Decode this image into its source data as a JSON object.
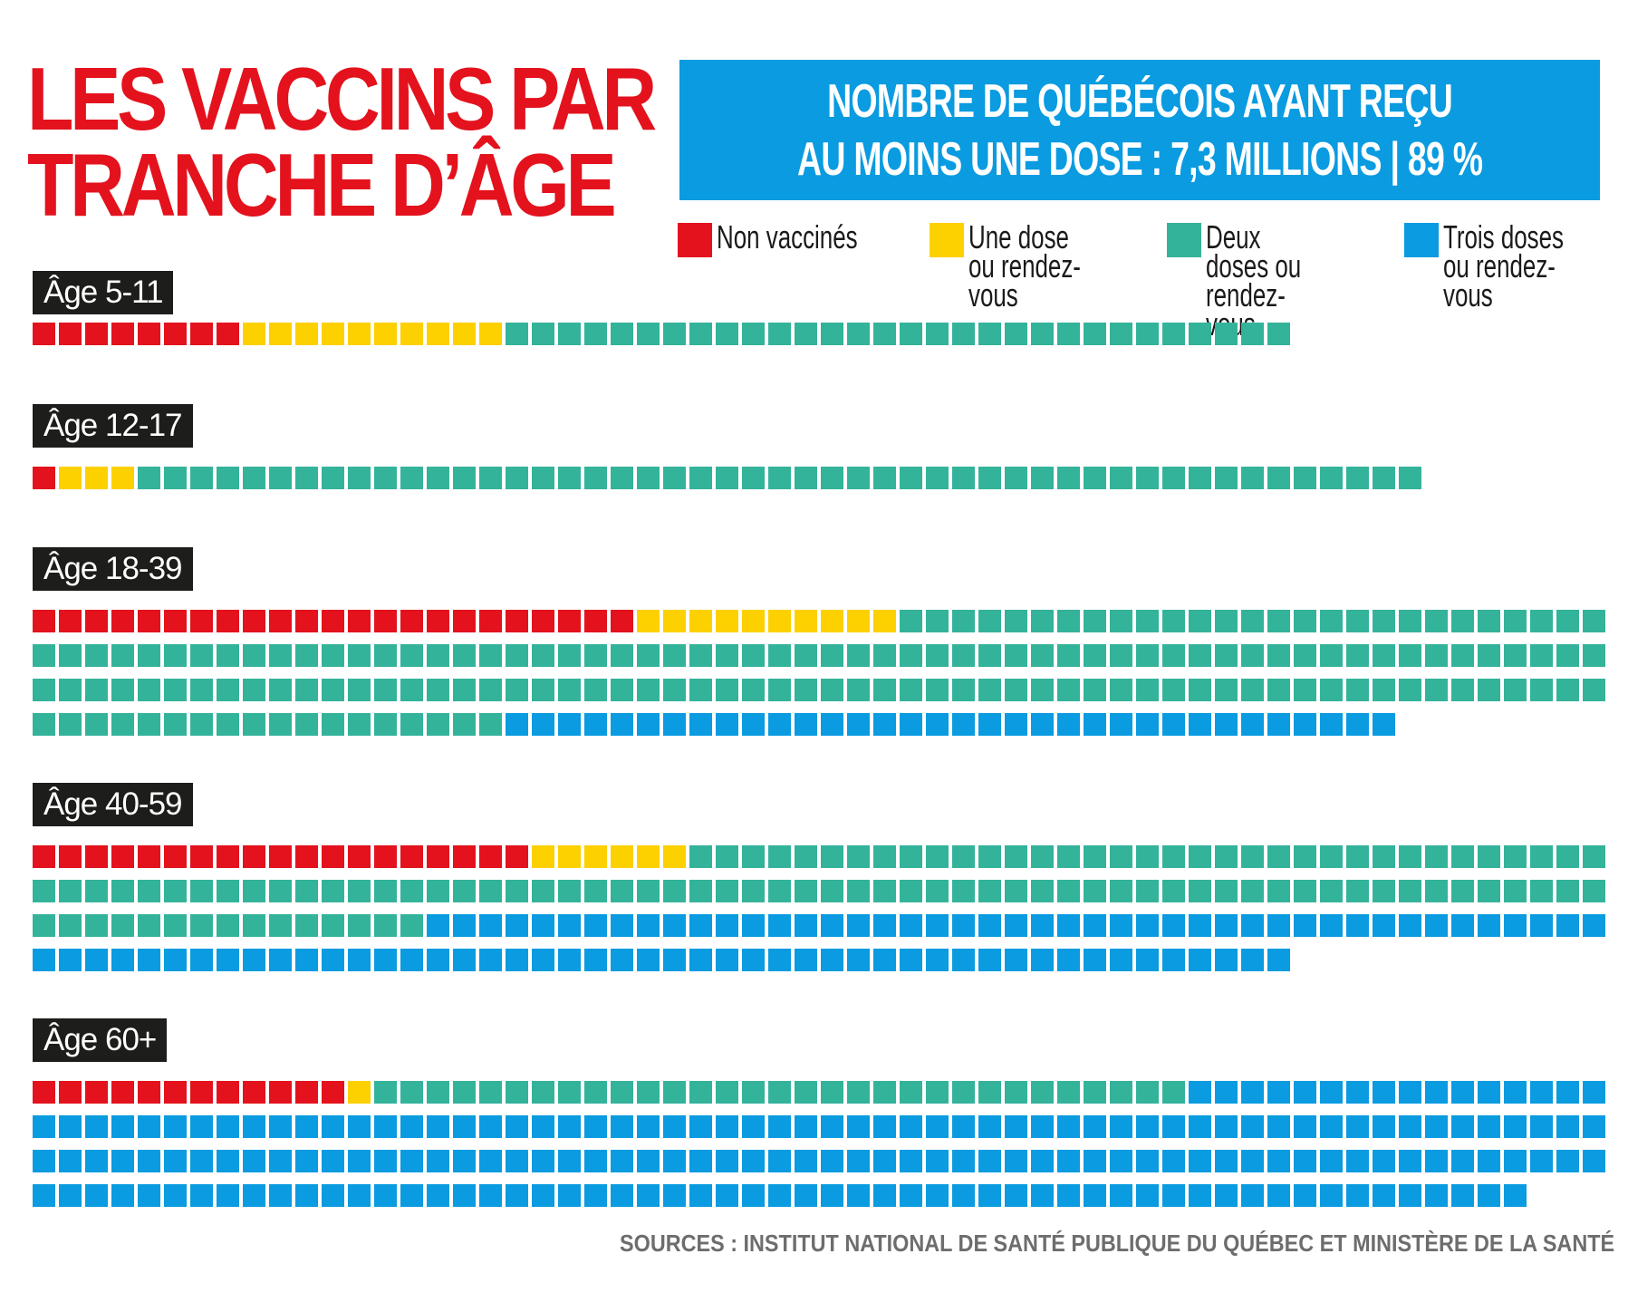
{
  "title_lines": [
    "LES VACCINS PAR",
    "TRANCHE D’ÂGE"
  ],
  "banner_lines": [
    "NOMBRE DE QUÉBÉCOIS AYANT REÇU",
    "AU MOINS UNE DOSE : 7,3 MILLIONS | 89 %"
  ],
  "legend": [
    {
      "label": "Non vaccinés",
      "color": "#e3121d"
    },
    {
      "label": "Une dose ou rendez-vous",
      "color": "#fdd000"
    },
    {
      "label": "Deux doses ou rendez-vous",
      "color": "#34b39b"
    },
    {
      "label": "Trois doses ou rendez-vous",
      "color": "#0a9be0"
    }
  ],
  "sources": "SOURCES : INSTITUT NATIONAL DE SANTÉ PUBLIQUE DU QUÉBEC ET MINISTÈRE DE LA SANTÉ",
  "chart_data": {
    "type": "waffle",
    "title": "LES VACCINS PAR TRANCHE D’ÂGE",
    "series": [
      "Non vaccinés",
      "Une dose ou rendez-vous",
      "Deux doses ou rendez-vous",
      "Trois doses ou rendez-vous"
    ],
    "categories": [
      "Âge 5-11",
      "Âge 12-17",
      "Âge 18-39",
      "Âge 40-59",
      "Âge 60+"
    ],
    "units_per_row": 60,
    "groups": [
      {
        "label": "Âge 5-11",
        "counts": [
          8,
          10,
          30,
          0
        ]
      },
      {
        "label": "Âge 12-17",
        "counts": [
          1,
          3,
          49,
          0
        ]
      },
      {
        "label": "Âge 18-39",
        "counts": [
          23,
          10,
          165,
          34
        ]
      },
      {
        "label": "Âge 40-59",
        "counts": [
          19,
          6,
          110,
          93
        ]
      },
      {
        "label": "Âge 60+",
        "counts": [
          12,
          1,
          31,
          193
        ]
      }
    ]
  }
}
